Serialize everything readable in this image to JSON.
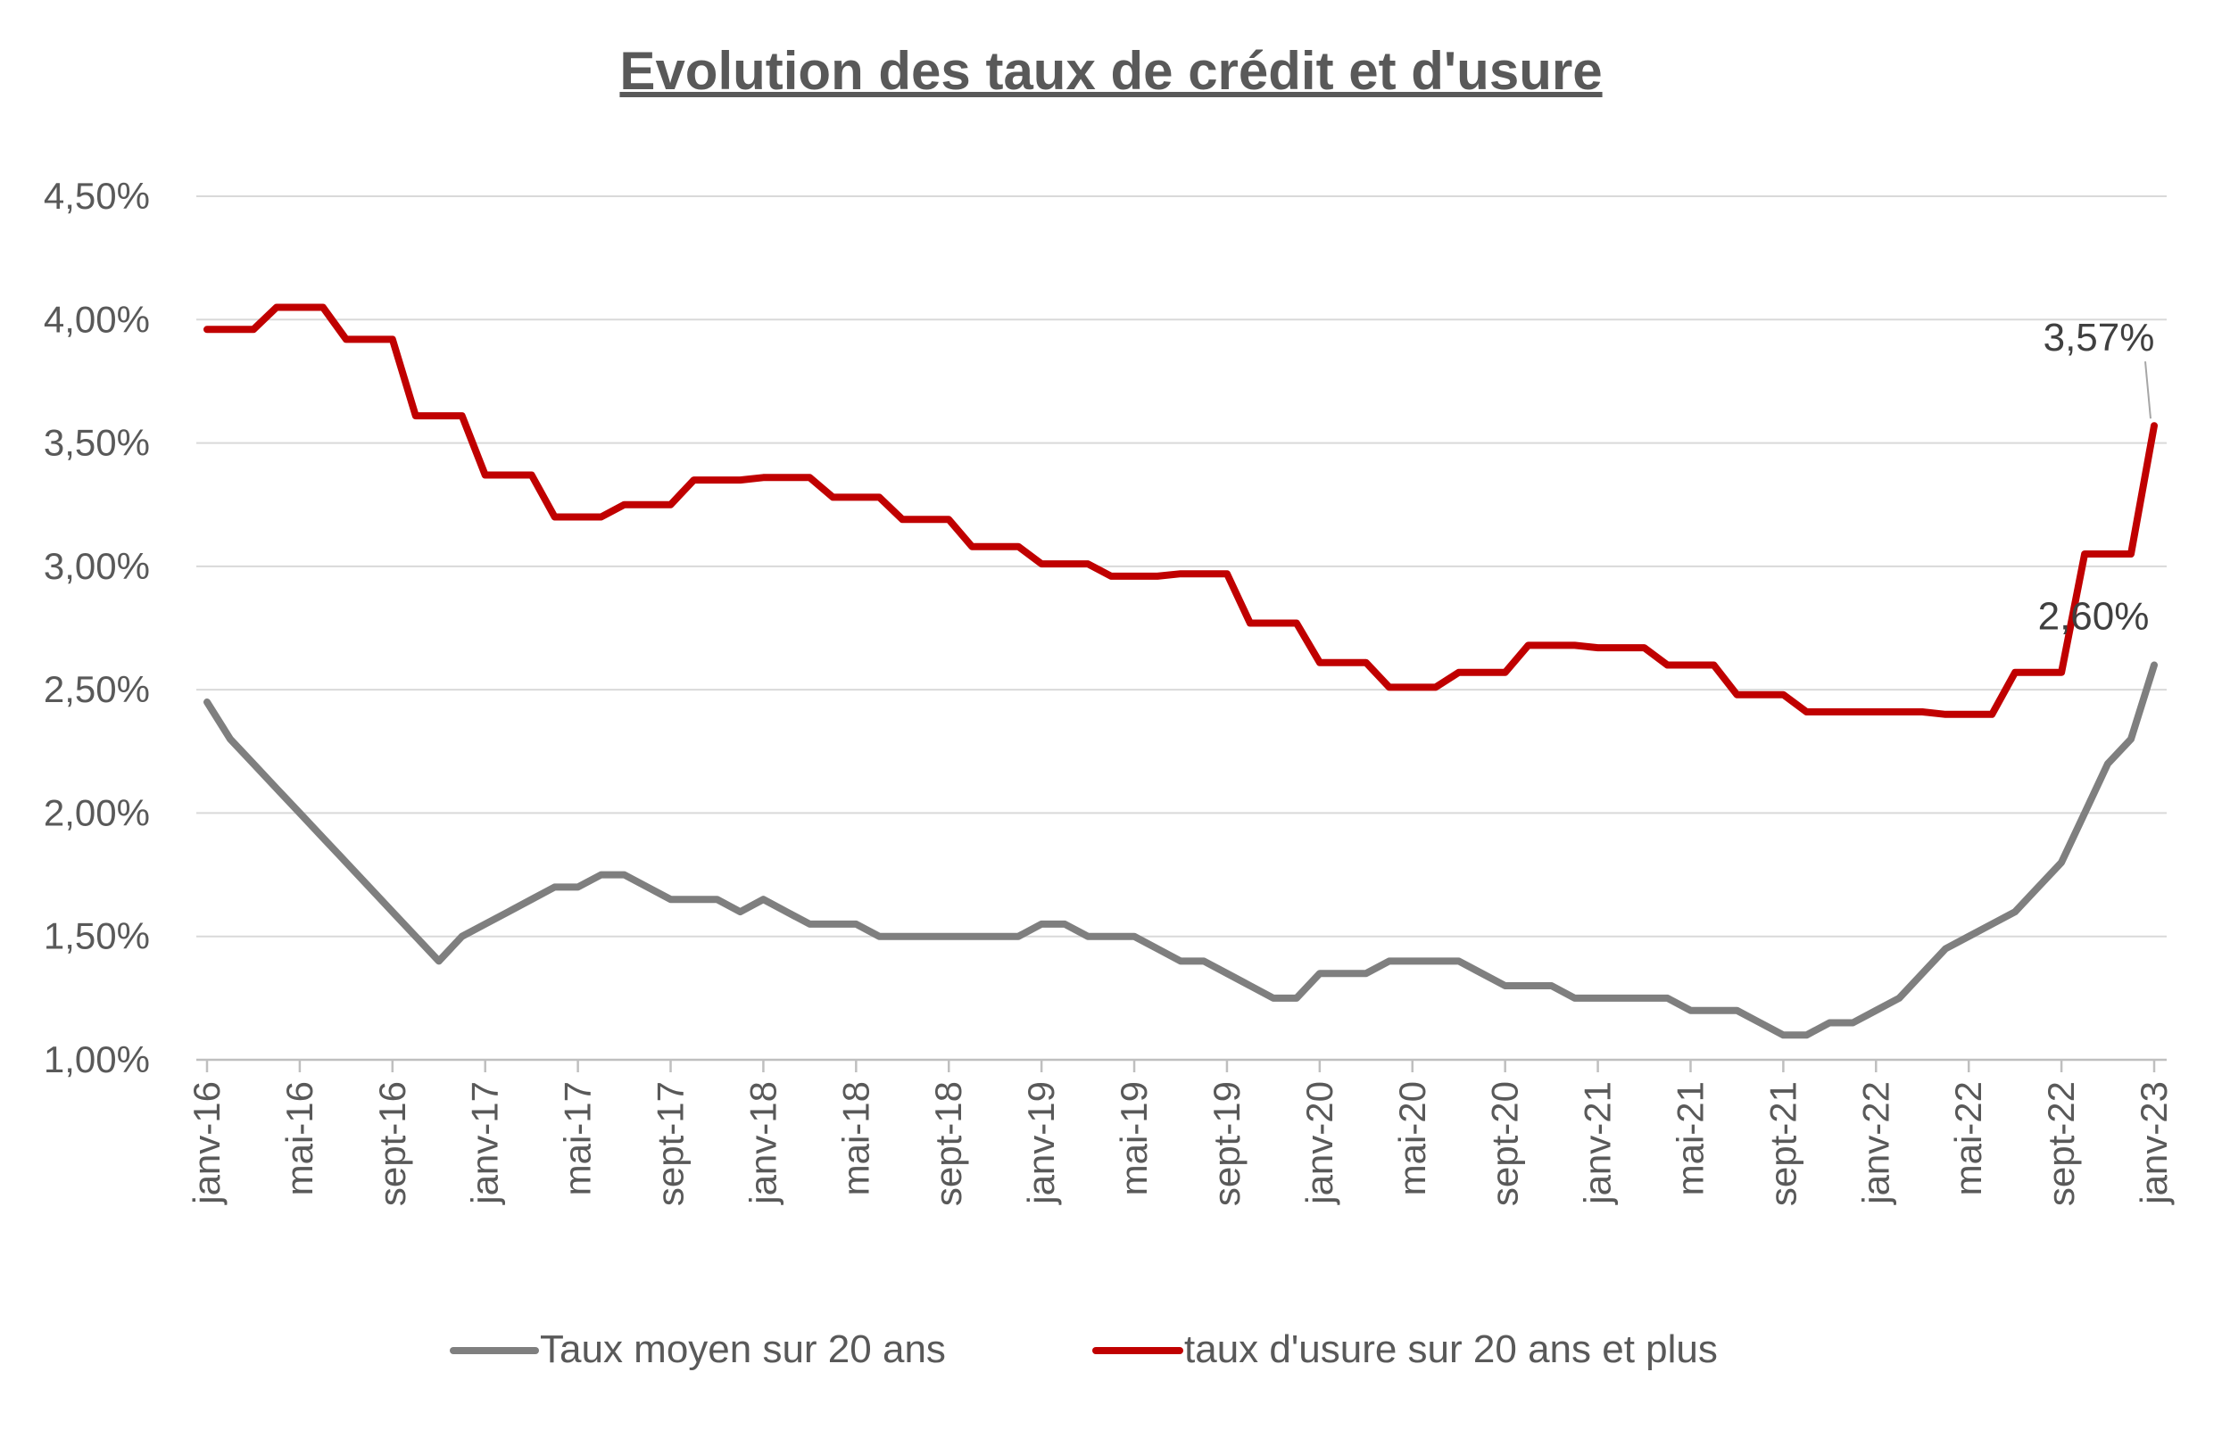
{
  "chart_data": {
    "type": "line",
    "title": "Evolution des taux de crédit et d'usure",
    "xlabel": "",
    "ylabel": "",
    "ylim": [
      0.01,
      0.045
    ],
    "y_ticks": [
      {
        "value": 0.01,
        "label": "1,00%"
      },
      {
        "value": 0.015,
        "label": "1,50%"
      },
      {
        "value": 0.02,
        "label": "2,00%"
      },
      {
        "value": 0.025,
        "label": "2,50%"
      },
      {
        "value": 0.03,
        "label": "3,00%"
      },
      {
        "value": 0.035,
        "label": "3,50%"
      },
      {
        "value": 0.04,
        "label": "4,00%"
      },
      {
        "value": 0.045,
        "label": "4,50%"
      }
    ],
    "x_labels": [
      "janv-16",
      "mai-16",
      "sept-16",
      "janv-17",
      "mai-17",
      "sept-17",
      "janv-18",
      "mai-18",
      "sept-18",
      "janv-19",
      "mai-19",
      "sept-19",
      "janv-20",
      "mai-20",
      "sept-20",
      "janv-21",
      "mai-21",
      "sept-21",
      "janv-22",
      "mai-22",
      "sept-22",
      "janv-23"
    ],
    "grid": true,
    "legend_position": "bottom",
    "series": [
      {
        "name": "Taux moyen sur 20 ans",
        "color": "#7f7f7f",
        "values": [
          0.0245,
          0.023,
          0.022,
          0.021,
          0.02,
          0.019,
          0.018,
          0.017,
          0.016,
          0.015,
          0.014,
          0.015,
          0.0155,
          0.016,
          0.0165,
          0.017,
          0.017,
          0.0175,
          0.0175,
          0.017,
          0.0165,
          0.0165,
          0.0165,
          0.016,
          0.0165,
          0.016,
          0.0155,
          0.0155,
          0.0155,
          0.015,
          0.015,
          0.015,
          0.015,
          0.015,
          0.015,
          0.015,
          0.0155,
          0.0155,
          0.015,
          0.015,
          0.015,
          0.0145,
          0.014,
          0.014,
          0.0135,
          0.013,
          0.0125,
          0.0125,
          0.0135,
          0.0135,
          0.0135,
          0.014,
          0.014,
          0.014,
          0.014,
          0.0135,
          0.013,
          0.013,
          0.013,
          0.0125,
          0.0125,
          0.0125,
          0.0125,
          0.0125,
          0.012,
          0.012,
          0.012,
          0.0115,
          0.011,
          0.011,
          0.0115,
          0.0115,
          0.012,
          0.0125,
          0.0135,
          0.0145,
          0.015,
          0.0155,
          0.016,
          0.017,
          0.018,
          0.02,
          0.022,
          0.023,
          0.026
        ]
      },
      {
        "name": "taux d'usure sur 20 ans et plus",
        "color": "#c00000",
        "values": [
          0.0396,
          0.0396,
          0.0396,
          0.0405,
          0.0405,
          0.0405,
          0.0392,
          0.0392,
          0.0392,
          0.0361,
          0.0361,
          0.0361,
          0.0337,
          0.0337,
          0.0337,
          0.032,
          0.032,
          0.032,
          0.0325,
          0.0325,
          0.0325,
          0.0335,
          0.0335,
          0.0335,
          0.0336,
          0.0336,
          0.0336,
          0.0328,
          0.0328,
          0.0328,
          0.0319,
          0.0319,
          0.0319,
          0.0308,
          0.0308,
          0.0308,
          0.0301,
          0.0301,
          0.0301,
          0.0296,
          0.0296,
          0.0296,
          0.0297,
          0.0297,
          0.0297,
          0.0277,
          0.0277,
          0.0277,
          0.0261,
          0.0261,
          0.0261,
          0.0251,
          0.0251,
          0.0251,
          0.0257,
          0.0257,
          0.0257,
          0.0268,
          0.0268,
          0.0268,
          0.0267,
          0.0267,
          0.0267,
          0.026,
          0.026,
          0.026,
          0.0248,
          0.0248,
          0.0248,
          0.0241,
          0.0241,
          0.0241,
          0.0241,
          0.0241,
          0.0241,
          0.024,
          0.024,
          0.024,
          0.0257,
          0.0257,
          0.0257,
          0.0305,
          0.0305,
          0.0305,
          0.0357
        ]
      }
    ],
    "annotations": [
      {
        "label": "2,60%",
        "series": 0,
        "index": 84
      },
      {
        "label": "3,57%",
        "series": 1,
        "index": 84
      }
    ]
  }
}
